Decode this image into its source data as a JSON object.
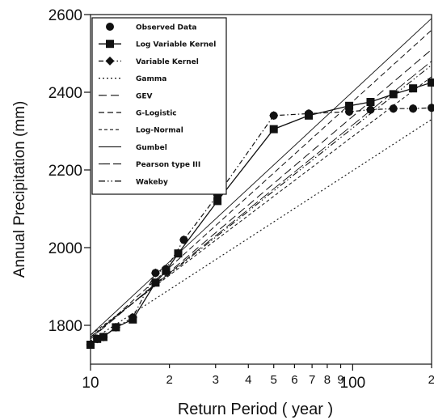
{
  "chart_data": {
    "type": "line",
    "xlabel": "Return Period ( year )",
    "ylabel": "Annual Precipitation (mm)",
    "xscale": "log",
    "xlim": [
      10,
      200
    ],
    "ylim": [
      1700,
      2600
    ],
    "legend_position": "top-left",
    "grid": false,
    "y_ticks": [
      {
        "value": 1800,
        "label": "1800"
      },
      {
        "value": 2000,
        "label": "2000"
      },
      {
        "value": 2200,
        "label": "2200"
      },
      {
        "value": 2400,
        "label": "2400"
      },
      {
        "value": 2600,
        "label": "2600"
      }
    ],
    "x_ticks": [
      {
        "value": 10,
        "label": "10",
        "major": true
      },
      {
        "value": 20,
        "label": "2",
        "major": false
      },
      {
        "value": 30,
        "label": "3",
        "major": false
      },
      {
        "value": 40,
        "label": "4",
        "major": false
      },
      {
        "value": 50,
        "label": "5",
        "major": false
      },
      {
        "value": 60,
        "label": "6",
        "major": false
      },
      {
        "value": 70,
        "label": "7",
        "major": false
      },
      {
        "value": 80,
        "label": "8",
        "major": false
      },
      {
        "value": 90,
        "label": "9",
        "major": false
      },
      {
        "value": 100,
        "label": "100",
        "major": true
      },
      {
        "value": 200,
        "label": "2",
        "major": false
      }
    ],
    "series": [
      {
        "name": "Observed Data",
        "style": "markers",
        "marker": "circle",
        "x": [
          10,
          10.6,
          11.2,
          12.5,
          14.5,
          17.7,
          19.4,
          22.7,
          30.5,
          50,
          68,
          97,
          117,
          143,
          170,
          200
        ],
        "y": [
          1750,
          1765,
          1770,
          1795,
          1820,
          1935,
          1945,
          2020,
          2135,
          2340,
          2345,
          2350,
          2355,
          2358,
          2358,
          2360
        ]
      },
      {
        "name": "Log Variable Kernel",
        "style": "solid",
        "marker": "square",
        "x": [
          10,
          10.6,
          11.2,
          12.5,
          14.5,
          17.7,
          19.4,
          21.6,
          30.5,
          50,
          68,
          97,
          117,
          143,
          170,
          200
        ],
        "y": [
          1750,
          1765,
          1770,
          1795,
          1815,
          1910,
          1940,
          1985,
          2120,
          2305,
          2340,
          2365,
          2375,
          2395,
          2410,
          2425
        ]
      },
      {
        "name": "Variable Kernel",
        "style": "dashdot",
        "marker": "diamond",
        "x": [
          10,
          10.6,
          11.2,
          12.5,
          14.5,
          17.7,
          19.4,
          22.7,
          30.5,
          50,
          68,
          97,
          117,
          143,
          170,
          200
        ],
        "y": [
          1750,
          1765,
          1770,
          1795,
          1820,
          1935,
          1945,
          2020,
          2135,
          2340,
          2345,
          2350,
          2355,
          2358,
          2358,
          2360
        ]
      },
      {
        "name": "Gamma",
        "style": "dotted",
        "marker": "none",
        "x": [
          10,
          200
        ],
        "y": [
          1760,
          2330
        ]
      },
      {
        "name": "GEV",
        "style": "longdash",
        "marker": "none",
        "x": [
          10,
          200
        ],
        "y": [
          1765,
          2510
        ]
      },
      {
        "name": "G-Logistic",
        "style": "dash",
        "marker": "none",
        "x": [
          10,
          200
        ],
        "y": [
          1765,
          2560
        ]
      },
      {
        "name": "Log-Normal",
        "style": "shortdash",
        "marker": "none",
        "x": [
          10,
          200
        ],
        "y": [
          1775,
          2440
        ]
      },
      {
        "name": "Gumbel",
        "style": "thin",
        "marker": "none",
        "x": [
          10,
          200
        ],
        "y": [
          1775,
          2590
        ]
      },
      {
        "name": "Pearson type III",
        "style": "thinlongdash",
        "marker": "none",
        "x": [
          10,
          200
        ],
        "y": [
          1770,
          2480
        ]
      },
      {
        "name": "Wakeby",
        "style": "dashdotdot",
        "marker": "none",
        "x": [
          10,
          200
        ],
        "y": [
          1770,
          2470
        ]
      }
    ]
  }
}
